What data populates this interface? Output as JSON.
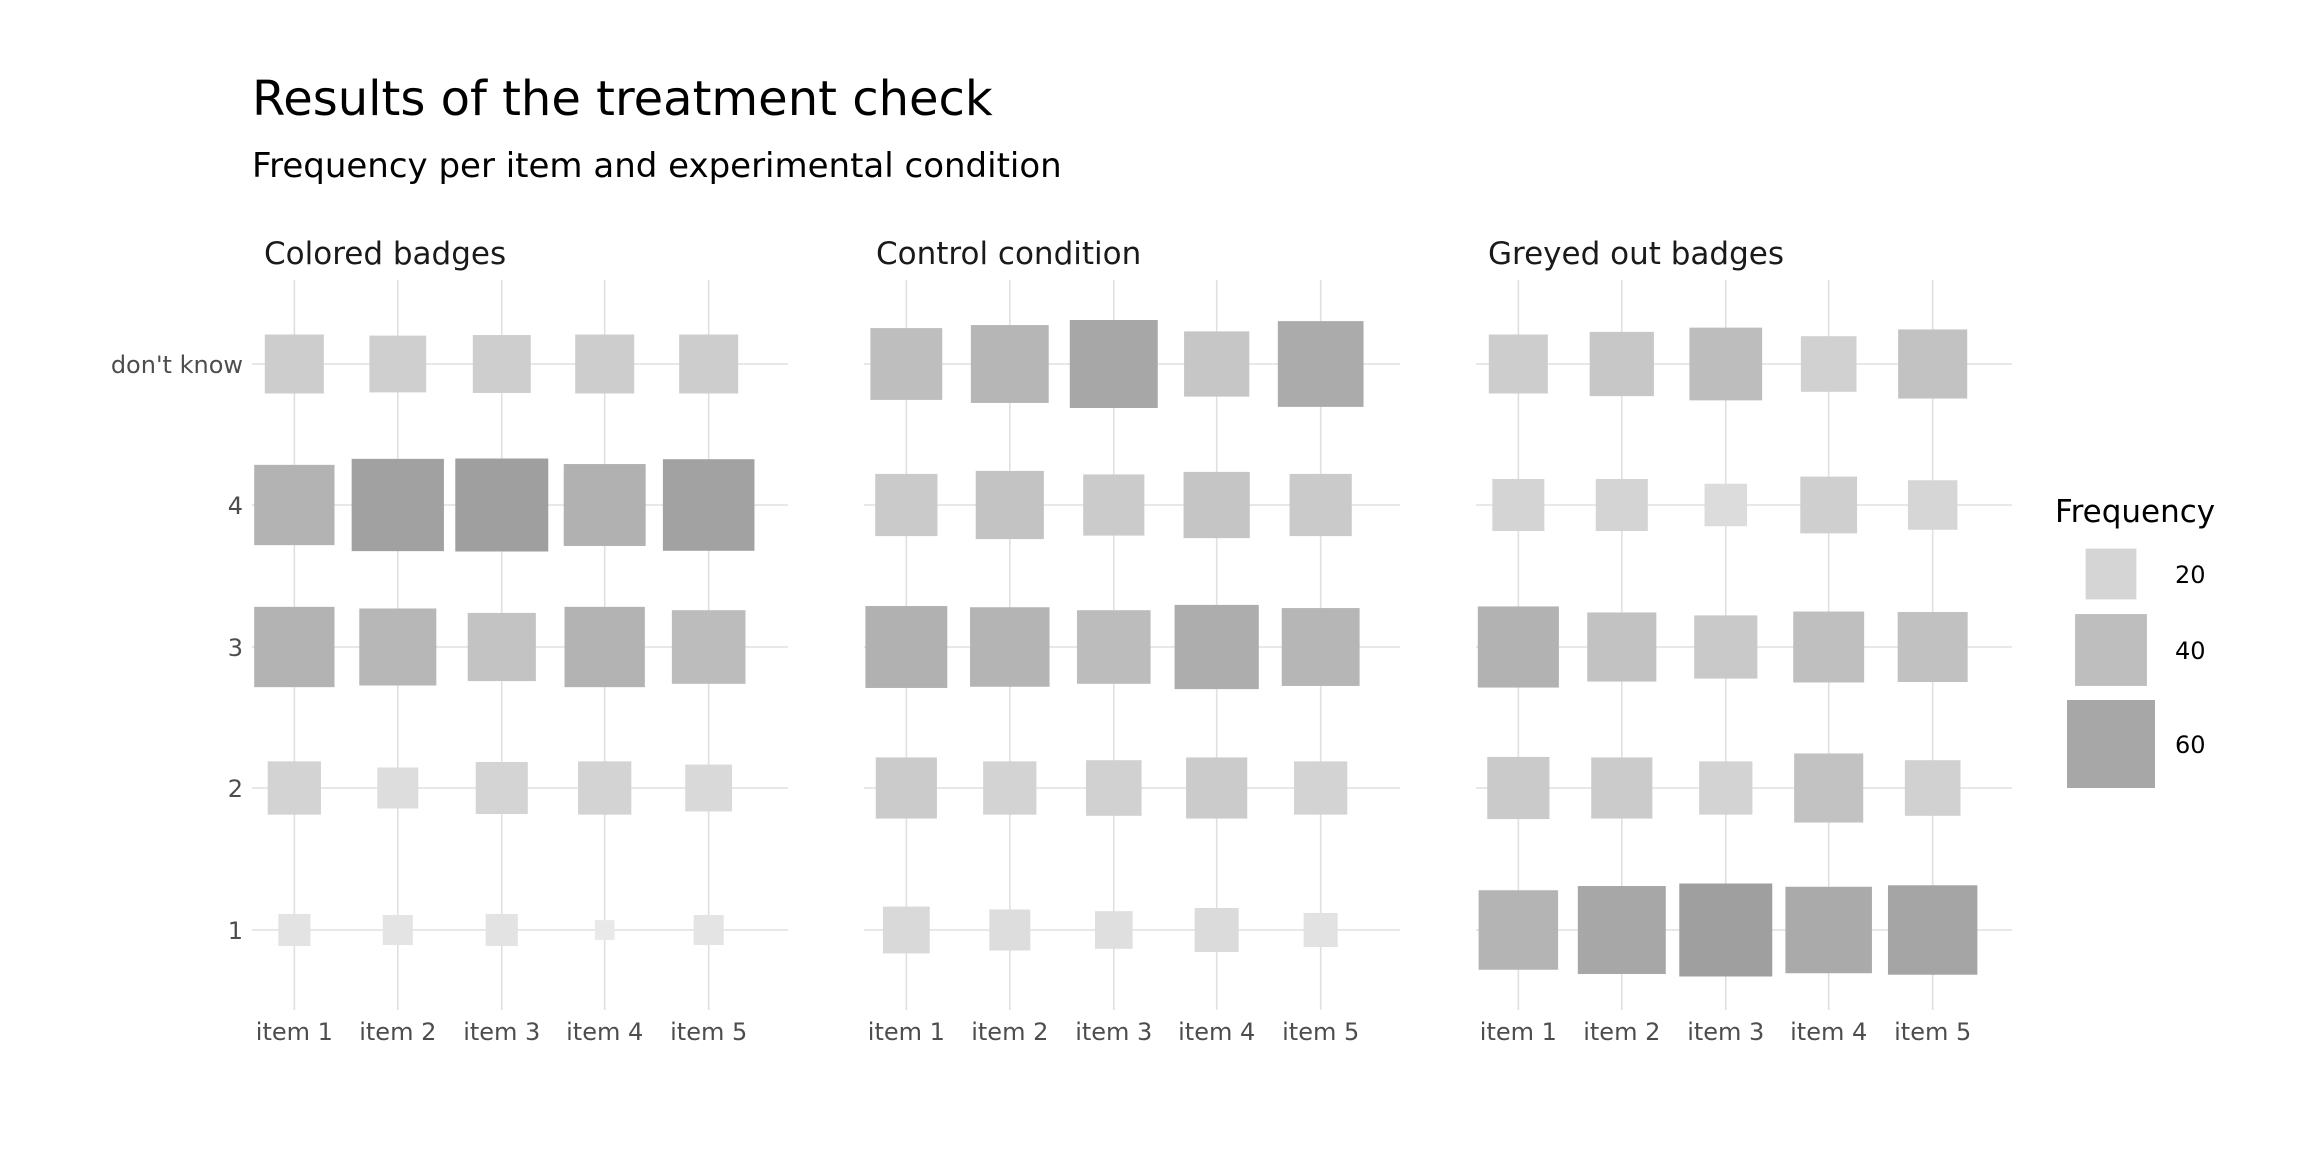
{
  "chart_data": {
    "type": "heatmap",
    "title": "Results of the treatment check",
    "subtitle": "Frequency per item and experimental condition",
    "categories": [
      "item 1",
      "item 2",
      "item 3",
      "item 4",
      "item 5"
    ],
    "y_categories": [
      "1",
      "2",
      "3",
      "4",
      "don't know"
    ],
    "size_encodes": "Frequency",
    "grid": true,
    "legend": {
      "title": "Frequency",
      "placement": "right",
      "values": [
        20,
        40,
        60
      ],
      "labels": [
        "20",
        "40",
        "60"
      ]
    },
    "panels": [
      {
        "name": "Colored badges",
        "rows": [
          {
            "y": "1",
            "values": [
              8,
              7,
              8,
              3,
              7
            ]
          },
          {
            "y": "2",
            "values": [
              22,
              13,
              21,
              22,
              17
            ]
          },
          {
            "y": "3",
            "values": [
              50,
              46,
              36,
              50,
              42
            ]
          },
          {
            "y": "4",
            "values": [
              50,
              66,
              67,
              52,
              65
            ]
          },
          {
            "y": "don't know",
            "values": [
              27,
              25,
              26,
              27,
              27
            ]
          }
        ]
      },
      {
        "name": "Control condition",
        "rows": [
          {
            "y": "1",
            "values": [
              17,
              13,
              11,
              15,
              9
            ]
          },
          {
            "y": "2",
            "values": [
              29,
              22,
              24,
              29,
              22
            ]
          },
          {
            "y": "3",
            "values": [
              52,
              49,
              42,
              55,
              47
            ]
          },
          {
            "y": "4",
            "values": [
              30,
              36,
              29,
              34,
              30
            ]
          },
          {
            "y": "don't know",
            "values": [
              40,
              47,
              60,
              33,
              57
            ]
          }
        ]
      },
      {
        "name": "Greyed out badges",
        "rows": [
          {
            "y": "1",
            "values": [
              49,
              60,
              67,
              58,
              62
            ]
          },
          {
            "y": "2",
            "values": [
              30,
              29,
              22,
              37,
              24
            ]
          },
          {
            "y": "3",
            "values": [
              51,
              37,
              31,
              39,
              38
            ]
          },
          {
            "y": "4",
            "values": [
              21,
              21,
              14,
              25,
              19
            ]
          },
          {
            "y": "don't know",
            "values": [
              27,
              32,
              41,
              24,
              37
            ]
          }
        ]
      }
    ]
  }
}
